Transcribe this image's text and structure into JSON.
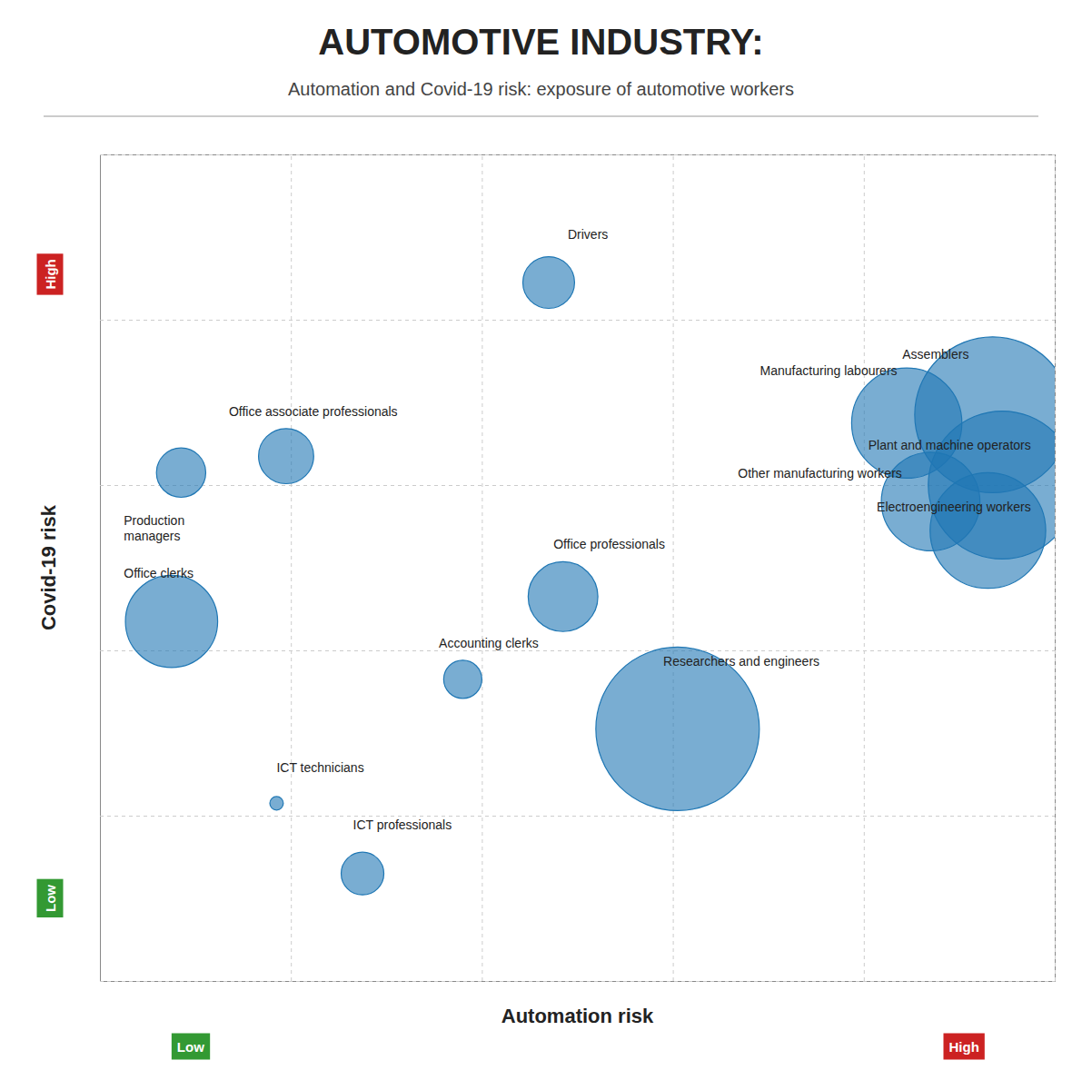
{
  "chart_data": {
    "type": "bubble",
    "title": "AUTOMOTIVE INDUSTRY:",
    "subtitle": "Automation and Covid-19 risk: exposure of automotive workers",
    "x_label": "Automation risk",
    "y_label": "Covid-19 risk",
    "labels": [
      "Drivers",
      "Assemblers",
      "Manufacturing labourers",
      "Plant and machine operators",
      "Other manufacturing workers",
      "Electroengineering workers",
      "Office associate professionals",
      "Production\nmanagers",
      "Office clerks",
      "Office professionals",
      "Accounting clerks",
      "Researchers and engineers",
      "ICT technicians",
      "ICT professionals"
    ],
    "x": [
      0.47,
      0.935,
      0.845,
      0.945,
      0.87,
      0.93,
      0.195,
      0.085,
      0.075,
      0.485,
      0.38,
      0.605,
      0.185,
      0.275
    ],
    "y": [
      0.845,
      0.685,
      0.675,
      0.6,
      0.58,
      0.545,
      0.635,
      0.615,
      0.435,
      0.465,
      0.365,
      0.305,
      0.215,
      0.13
    ],
    "sizes": [
      2200,
      20000,
      10000,
      18000,
      8000,
      11000,
      2500,
      2000,
      7000,
      4000,
      1200,
      22000,
      150,
      1500
    ],
    "xlim": [
      0,
      1
    ],
    "ylim": [
      0,
      1
    ],
    "xticks": [
      0,
      0.2,
      0.4,
      0.6,
      0.8,
      1
    ],
    "yticks": [
      0,
      0.2,
      0.4,
      0.6,
      0.8,
      1
    ],
    "grid": true,
    "tick_labels": false,
    "annotations": {
      "x_axis": [
        {
          "text": "Low",
          "color": "#339933"
        },
        {
          "text": "High",
          "color": "#cc2222"
        }
      ],
      "y_axis": [
        {
          "text": "Low",
          "color": "#339933"
        },
        {
          "text": "High",
          "color": "#cc2222"
        }
      ]
    }
  }
}
